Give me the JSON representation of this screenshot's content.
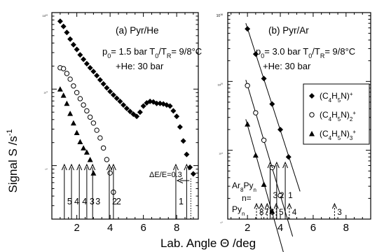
{
  "figure": {
    "ylabel": "Signal S /s",
    "ylabel_exp": "-1",
    "xlabel": "Lab. Angle Θ /deg"
  },
  "chart_data": [
    {
      "type": "scatter",
      "panel": "a",
      "title": "(a) Pyr/He",
      "conditions": [
        "p0= 1.5 bar T0/TR= 9/8°C",
        "+He: 30 bar"
      ],
      "xlim": [
        0.5,
        9.3
      ],
      "ylim": [
        20,
        10000
      ],
      "yscale": "log",
      "xticks": [
        2,
        4,
        6,
        8
      ],
      "yticks": [
        {
          "label": "10",
          "exp": "2",
          "v": 100
        },
        {
          "label": "10",
          "exp": "3",
          "v": 1000
        },
        {
          "label": "10",
          "exp": "4",
          "v": 10000
        }
      ],
      "series": [
        {
          "marker": "diamond",
          "x": [
            1.0,
            1.2,
            1.4,
            1.6,
            1.8,
            2.0,
            2.2,
            2.4,
            2.6,
            2.8,
            3.0,
            3.2,
            3.4,
            3.6,
            3.8,
            4.0,
            4.2,
            4.4,
            4.6,
            4.8,
            5.0,
            5.2,
            5.4,
            5.6,
            5.8,
            6.0,
            6.2,
            6.4,
            6.6,
            6.8,
            7.0,
            7.2,
            7.4,
            7.6,
            7.8,
            8.0,
            8.2,
            8.4,
            8.6,
            8.8,
            9.0
          ],
          "y": [
            7700,
            6600,
            5500,
            4500,
            3800,
            3300,
            2800,
            2450,
            2150,
            1900,
            1700,
            1500,
            1320,
            1170,
            1040,
            930,
            840,
            760,
            690,
            620,
            560,
            510,
            470,
            440,
            500,
            600,
            660,
            690,
            680,
            650,
            650,
            640,
            620,
            600,
            520,
            440,
            320,
            210,
            140,
            95,
            78
          ]
        },
        {
          "marker": "circle",
          "x": [
            1.0,
            1.2,
            1.4,
            1.6,
            1.8,
            2.0,
            2.2,
            2.4,
            2.6,
            2.8,
            3.0,
            3.2,
            3.4,
            3.6,
            3.8,
            4.0,
            4.2
          ],
          "y": [
            1900,
            1850,
            1600,
            1350,
            1100,
            900,
            750,
            620,
            520,
            430,
            360,
            290,
            230,
            170,
            120,
            80,
            45
          ]
        },
        {
          "marker": "triangle",
          "x": [
            1.0,
            1.2,
            1.4,
            1.6,
            1.8,
            2.0,
            2.2,
            2.4,
            2.6,
            2.8,
            3.0
          ],
          "y": [
            1000,
            830,
            650,
            480,
            360,
            270,
            205,
            170,
            150,
            120,
            80
          ]
        }
      ],
      "arrows": [
        {
          "x": 1.25,
          "label": "5"
        },
        {
          "x": 1.68,
          "label": "4"
        },
        {
          "x": 2.15,
          "label": "4"
        },
        {
          "x": 2.6,
          "label": "3"
        },
        {
          "x": 2.95,
          "label": "3"
        },
        {
          "x": 3.95,
          "label": "2"
        },
        {
          "x": 4.2,
          "label": "2"
        },
        {
          "x": 7.95,
          "label": "1"
        },
        {
          "x": 8.6,
          "label": ""
        }
      ],
      "dotted_x": 8.85,
      "note": "ΔE/E=0.3"
    },
    {
      "type": "scatter",
      "panel": "b",
      "title": "(b) Pyr/Ar",
      "conditions": [
        "p0= 3.0 bar T0/TR= 9/8°C",
        "+He: 30 bar"
      ],
      "xlim": [
        0.8,
        9.5
      ],
      "ylim": [
        100,
        100000
      ],
      "yscale": "log",
      "xticks": [
        2,
        4,
        6,
        8
      ],
      "yticks": [
        {
          "label": "10",
          "exp": "2",
          "v": 100
        },
        {
          "label": "10",
          "exp": "3",
          "v": 1000
        },
        {
          "label": "10",
          "exp": "4",
          "v": 10000
        },
        {
          "label": "10",
          "exp": "5",
          "v": 100000
        }
      ],
      "legend": {
        "position": "center-right",
        "entries": [
          {
            "marker": "diamond",
            "base": "(C",
            "s1": "4",
            "mid": "H",
            "s2": "5",
            "tail": "N)",
            "sub": "",
            "sup": "+"
          },
          {
            "marker": "circle",
            "base": "(C",
            "s1": "4",
            "mid": "H",
            "s2": "5",
            "tail": "N)",
            "sub": "2",
            "sup": "+"
          },
          {
            "marker": "triangle",
            "base": "(C",
            "s1": "4",
            "mid": "H",
            "s2": "5",
            "tail": "N)",
            "sub": "3",
            "sup": "+"
          }
        ]
      },
      "series": [
        {
          "marker": "diamond",
          "fit": true,
          "x": [
            2.0,
            2.5,
            3.0,
            3.5,
            4.0,
            4.5
          ],
          "y": [
            58000,
            25000,
            11000,
            4700,
            2000,
            800
          ]
        },
        {
          "marker": "circle",
          "fit": true,
          "x": [
            2.0,
            2.5,
            3.0,
            3.5,
            4.0
          ],
          "y": [
            8700,
            3500,
            1400,
            560,
            220
          ]
        },
        {
          "marker": "triangle",
          "fit": true,
          "x": [
            2.0,
            2.5,
            3.0,
            3.5
          ],
          "y": [
            2400,
            850,
            320,
            130
          ]
        }
      ],
      "ar_label": {
        "base": "Ar",
        "sub1": "8",
        "mid": "Py",
        "sub2": "n",
        "n": "n="
      },
      "py_label": {
        "base": "Py",
        "sub": "n"
      },
      "ar_arrows": [
        {
          "x": 3.38,
          "label": "3"
        },
        {
          "x": 3.78,
          "label": "2"
        },
        {
          "x": 4.3,
          "label": "1"
        }
      ],
      "py_arrows": [
        {
          "x": 2.55,
          "label": "8"
        },
        {
          "x": 2.85,
          "label": "7"
        },
        {
          "x": 3.2,
          "label": "6"
        },
        {
          "x": 3.75,
          "label": "5"
        },
        {
          "x": 4.55,
          "label": "4"
        },
        {
          "x": 7.3,
          "label": "3"
        }
      ]
    }
  ]
}
